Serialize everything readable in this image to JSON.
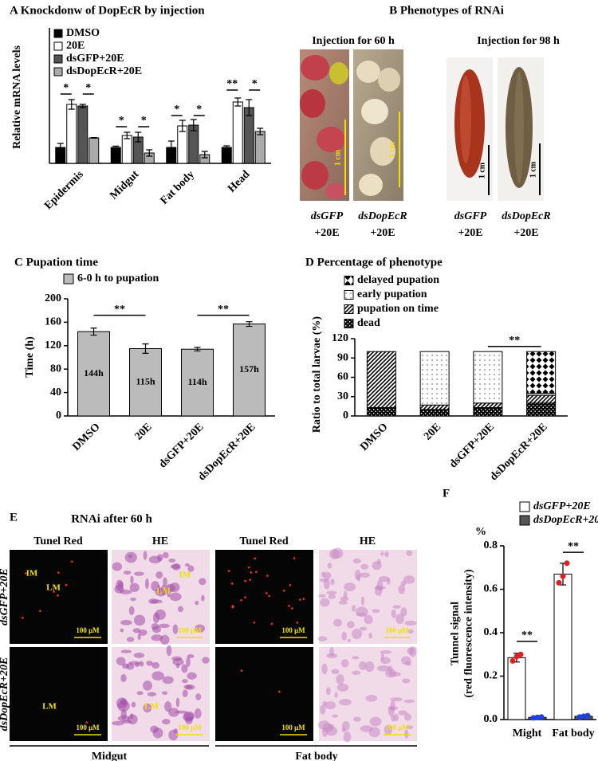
{
  "chart_data": [
    {
      "type": "bar",
      "title": "A Knockdonw of DopEcR by injection",
      "ylabel": "Relative mRNA levels",
      "categories": [
        "Epidermis",
        "Midgut",
        "Fat body",
        "Head"
      ],
      "ylim": [
        0,
        8.5
      ],
      "series": [
        {
          "name": "DMSO",
          "color": "#000000",
          "values": [
            1.0,
            1.0,
            1.0,
            1.0
          ],
          "errors": [
            0.25,
            0.08,
            0.4,
            0.1
          ]
        },
        {
          "name": "20E",
          "color": "#ffffff",
          "values": [
            3.7,
            1.75,
            2.35,
            3.85
          ],
          "errors": [
            0.3,
            0.2,
            0.35,
            0.25
          ]
        },
        {
          "name": "dsGFP+20E",
          "color": "#555555",
          "values": [
            3.6,
            1.65,
            2.4,
            3.5
          ],
          "errors": [
            0.1,
            0.3,
            0.35,
            0.5
          ]
        },
        {
          "name": "dsDopEcR+20E",
          "color": "#aaaaaa",
          "values": [
            1.6,
            0.65,
            0.55,
            2.0
          ],
          "errors": [
            0.02,
            0.2,
            0.2,
            0.2
          ]
        }
      ],
      "annotations": [
        "*",
        "*",
        "*",
        "*",
        "*",
        "*",
        "**",
        "*"
      ]
    },
    {
      "type": "bar",
      "title": "C  Pupation time",
      "ylabel": "Time (h)",
      "categories": [
        "DMSO",
        "20E",
        "dsGFP+20E",
        "dsDopEcR+20E"
      ],
      "ylim": [
        0,
        200
      ],
      "yticks": [
        0,
        40,
        80,
        120,
        160,
        200
      ],
      "series": [
        {
          "name": "6-0 h to pupation",
          "color": "#bbbbbb",
          "values": [
            144,
            115,
            114,
            157
          ],
          "value_labels": [
            "144h",
            "115h",
            "114h",
            "157h"
          ],
          "errors": [
            6,
            8,
            3,
            4
          ]
        }
      ],
      "annotations": [
        "**",
        "**"
      ]
    },
    {
      "type": "bar",
      "stacked": true,
      "title": "D  Percentage of phenotype",
      "ylabel": "Ratio to total larvae (%)",
      "categories": [
        "DMSO",
        "20E",
        "dsGFP+20E",
        "dsDopEcR+20E"
      ],
      "ylim": [
        0,
        120
      ],
      "yticks": [
        0,
        30,
        60,
        90,
        120
      ],
      "series": [
        {
          "name": "dead",
          "color": "#000000",
          "pattern": "dots-dark",
          "values": [
            13,
            10,
            13,
            20
          ]
        },
        {
          "name": "pupation on time",
          "color": "#ffffff",
          "pattern": "hatch",
          "values": [
            87,
            7,
            7,
            12
          ]
        },
        {
          "name": "early pupation",
          "color": "#ffffff",
          "pattern": "dots",
          "values": [
            0,
            83,
            80,
            3
          ]
        },
        {
          "name": "delayed pupation",
          "color": "#ffffff",
          "pattern": "diamonds",
          "values": [
            0,
            0,
            0,
            65
          ]
        }
      ],
      "annotations": [
        "**"
      ]
    },
    {
      "type": "bar",
      "title": "F",
      "ylabel": [
        "Tunnel signal",
        "(red fluorescence intensity)"
      ],
      "y_unit": "%",
      "categories": [
        "Might",
        "Fat body"
      ],
      "ylim": [
        0,
        0.8
      ],
      "yticks": [
        {
          "value": 0,
          "label": "0.0"
        },
        0.2,
        0.4,
        0.6,
        0.8
      ],
      "series": [
        {
          "name": "dsGFP+20E",
          "color": "#ffffff",
          "point_color": "#e02020",
          "values": [
            0.285,
            0.67
          ],
          "errors": [
            0.02,
            0.05
          ],
          "points": [
            [
              0.27,
              0.29,
              0.3
            ],
            [
              0.63,
              0.66,
              0.72
            ]
          ]
        },
        {
          "name": "dsDopEcR+20E",
          "color": "#555555",
          "point_color": "#2040e0",
          "values": [
            0.01,
            0.015
          ],
          "errors": [
            0.005,
            0.005
          ],
          "points": [
            [
              0.008,
              0.01,
              0.012
            ],
            [
              0.012,
              0.015,
              0.018
            ]
          ]
        }
      ],
      "annotations": [
        "**",
        "**"
      ]
    }
  ],
  "panel_b": {
    "title": "B Phenotypes of RNAi",
    "groups": [
      "Injection for 60 h",
      "Injection for 98 h"
    ],
    "images": [
      {
        "scale": "1 cm",
        "name": "dsGFP",
        "condition": "+20E"
      },
      {
        "scale": "1 cm",
        "name": "dsDopEcR",
        "condition": "+20E"
      },
      {
        "scale": "1 cm",
        "name": "dsGFP",
        "condition": "+20E"
      },
      {
        "scale": "1 cm",
        "name": "dsDopEcR",
        "condition": "+20E"
      }
    ]
  },
  "panel_e": {
    "label": "E",
    "title": "RNAi after 60 h",
    "columns": [
      "Tunel Red",
      "HE",
      "Tunel Red",
      "HE"
    ],
    "rows": [
      "dsGFP+20E",
      "dsDopEcR+20E"
    ],
    "tissues": [
      "Midgut",
      "Fat body"
    ],
    "cells": [
      [
        {
          "marks": [
            "IM",
            "LM"
          ],
          "scale": "100 μM"
        },
        {
          "marks": [
            "IM",
            "LM"
          ],
          "scale": "100 μM"
        },
        {
          "scale": "100 μM"
        },
        {
          "scale": "100 μM"
        }
      ],
      [
        {
          "marks": [
            "LM"
          ],
          "scale": "100 μM"
        },
        {
          "marks": [
            "LM"
          ],
          "scale": "100 μM"
        },
        {
          "scale": "100 μM"
        },
        {
          "scale": "100 μM"
        }
      ]
    ]
  }
}
